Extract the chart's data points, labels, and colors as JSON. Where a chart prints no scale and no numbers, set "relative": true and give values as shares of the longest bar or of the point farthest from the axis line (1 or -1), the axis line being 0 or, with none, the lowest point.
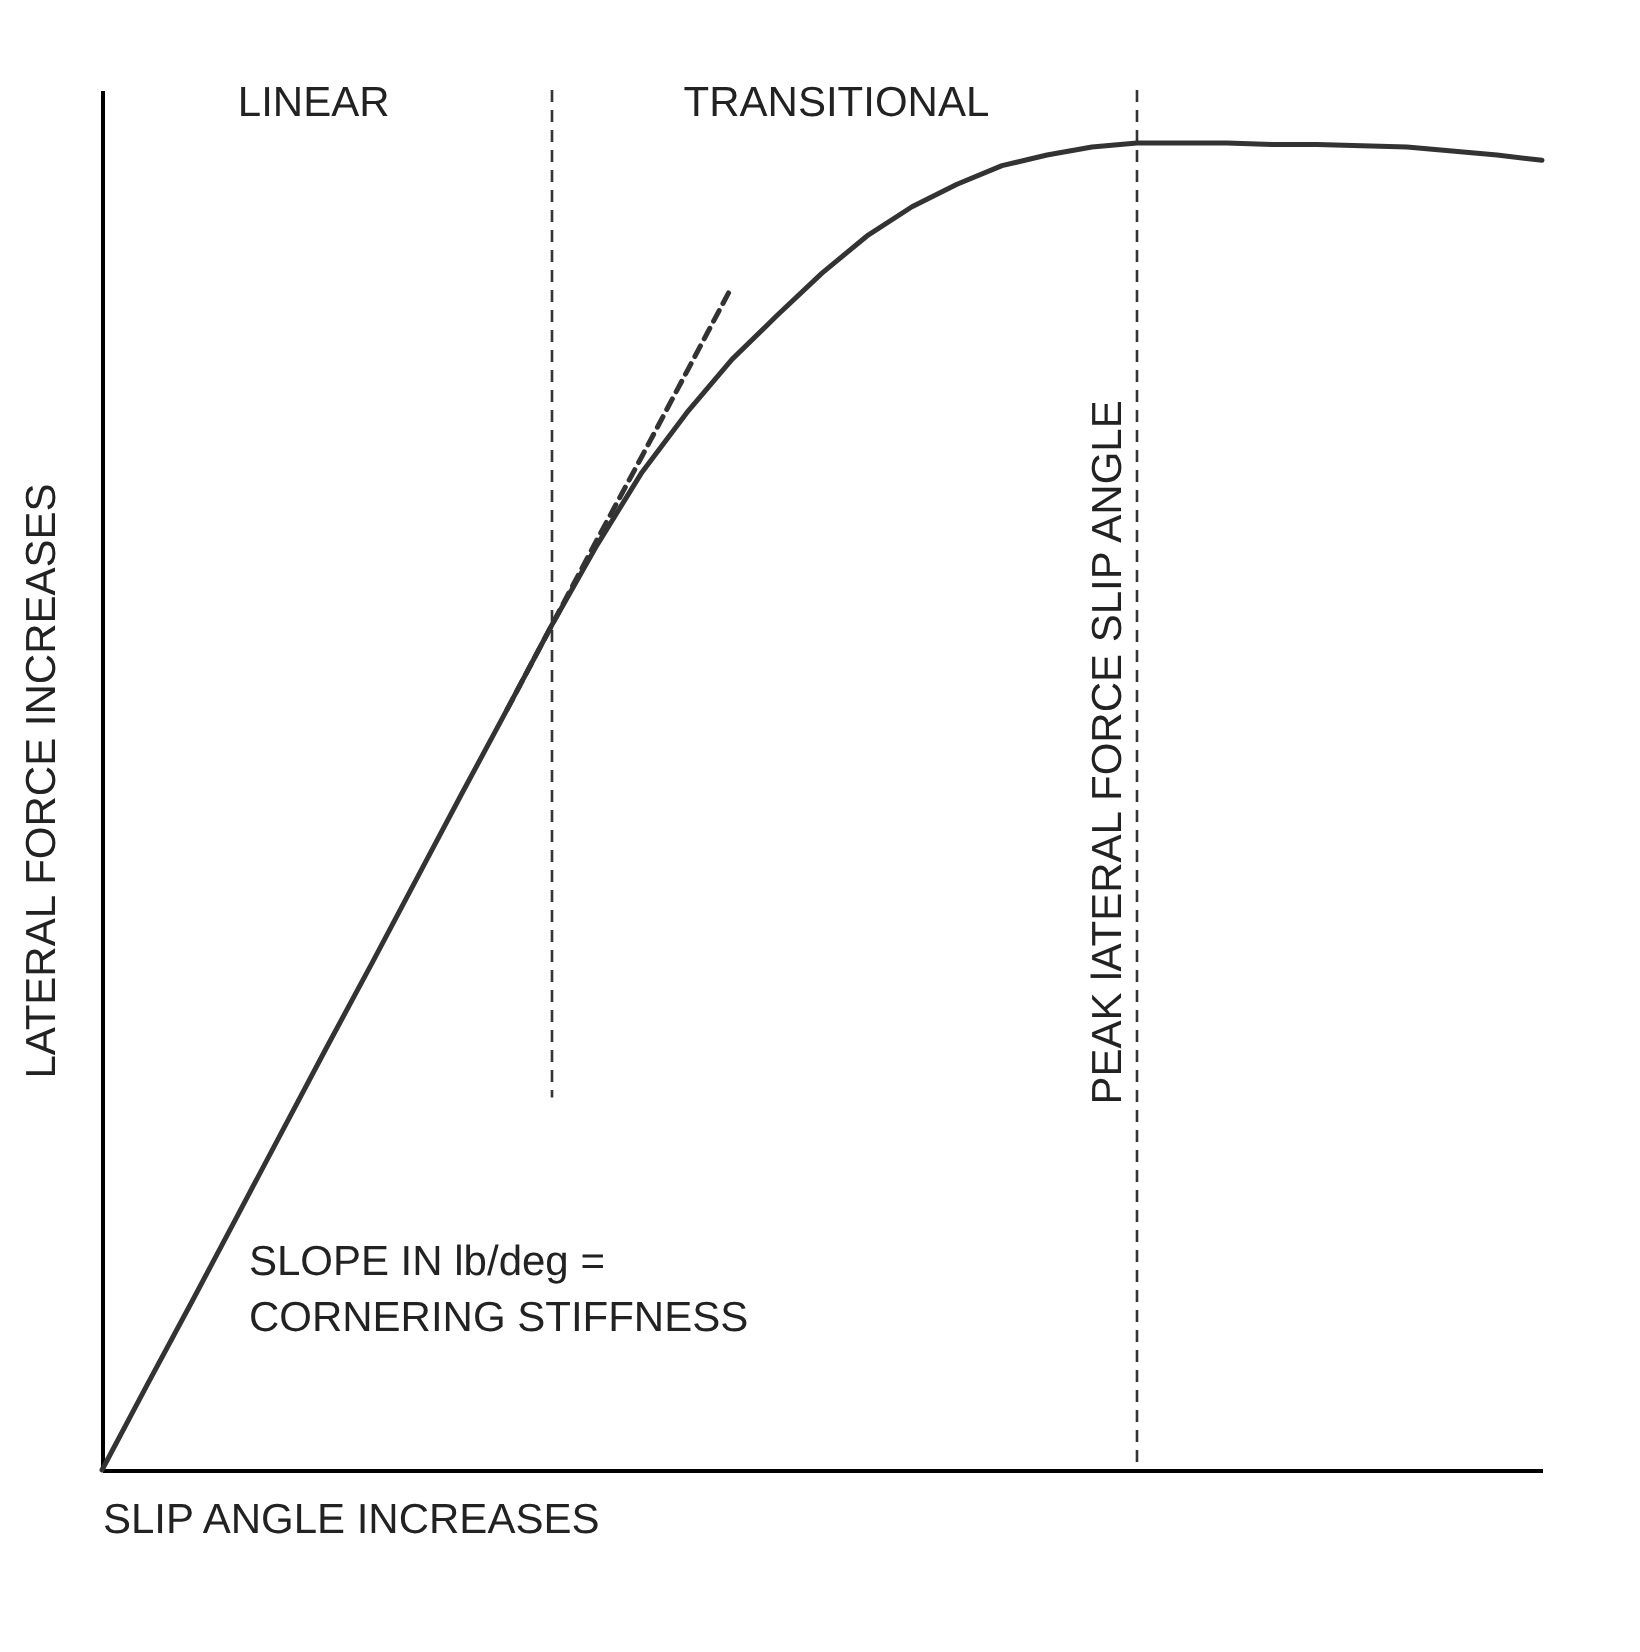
{
  "chart_data": {
    "type": "line",
    "relative": true,
    "xlabel": "SLIP ANGLE INCREASES",
    "ylabel": "LATERAL FORCE INCREASES",
    "categories": [
      null,
      null,
      null,
      null,
      null,
      null,
      null,
      null,
      null,
      null,
      null,
      null,
      null,
      null,
      null,
      null,
      null,
      null,
      null,
      null,
      null,
      null,
      null,
      null,
      null,
      null,
      null,
      null,
      null,
      null,
      null,
      null,
      null
    ],
    "tick_labels": false,
    "series": [
      {
        "color": "#333333",
        "values": [
          0,
          0.064,
          0.127,
          0.191,
          0.255,
          0.319,
          0.382,
          0.446,
          0.51,
          0.573,
          0.637,
          0.697,
          0.752,
          0.797,
          0.837,
          0.87,
          0.902,
          0.93,
          0.952,
          0.969,
          0.983,
          0.991,
          0.997,
          1.0,
          1.0,
          1.0,
          0.999,
          0.999,
          0.998,
          0.997,
          0.994,
          0.991,
          0.987
        ]
      },
      {
        "color": "#333333",
        "line_style": "dashed",
        "values": [
          null,
          null,
          null,
          null,
          null,
          null,
          null,
          null,
          null,
          0.573,
          0.637,
          0.701,
          0.764,
          0.828,
          0.892,
          null,
          null,
          null,
          null,
          null,
          null,
          null,
          null,
          null,
          null,
          null,
          null,
          null,
          null,
          null,
          null,
          null,
          null
        ]
      }
    ],
    "annotations": [
      "LINEAR",
      "TRANSITIONAL",
      "SLOPE IN lb/deg =\nCORNERING STIFFNESS",
      "PEAK lATERAL FORCE SLIP ANGLE"
    ]
  }
}
